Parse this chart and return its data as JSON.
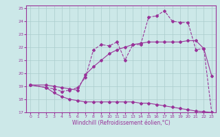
{
  "xlabel": "Windchill (Refroidissement éolien,°C)",
  "bg_color": "#cce8e8",
  "line_color": "#993399",
  "grid_color": "#aacccc",
  "xlim": [
    -0.5,
    23.5
  ],
  "ylim": [
    17,
    25.2
  ],
  "xticks": [
    0,
    1,
    2,
    3,
    4,
    5,
    6,
    7,
    8,
    9,
    10,
    11,
    12,
    13,
    14,
    15,
    16,
    17,
    18,
    19,
    20,
    21,
    22,
    23
  ],
  "yticks": [
    17,
    18,
    19,
    20,
    21,
    22,
    23,
    24,
    25
  ],
  "lines": [
    {
      "x": [
        0,
        2,
        3,
        4,
        5,
        6,
        7,
        8,
        9,
        10,
        11,
        12,
        13,
        14,
        15,
        16,
        17,
        18,
        19,
        20,
        21,
        22,
        23
      ],
      "y": [
        19.1,
        18.9,
        18.5,
        18.2,
        18.0,
        17.9,
        17.8,
        17.8,
        17.8,
        17.8,
        17.8,
        17.8,
        17.8,
        17.7,
        17.7,
        17.6,
        17.5,
        17.4,
        17.3,
        17.2,
        17.1,
        17.05,
        17.0
      ],
      "style": "-",
      "marker": "D",
      "markersize": 2.0,
      "linewidth": 0.8
    },
    {
      "x": [
        0,
        2,
        3,
        4,
        5,
        6,
        7,
        8,
        9,
        10,
        11,
        12,
        13,
        14,
        15,
        16,
        17,
        18,
        19,
        20,
        21,
        22,
        23
      ],
      "y": [
        19.1,
        19.1,
        19.0,
        18.9,
        18.8,
        18.7,
        19.9,
        20.5,
        21.0,
        21.5,
        21.8,
        22.0,
        22.2,
        22.3,
        22.4,
        22.4,
        22.4,
        22.4,
        22.4,
        22.5,
        22.5,
        21.9,
        19.8
      ],
      "style": "-",
      "marker": "D",
      "markersize": 2.0,
      "linewidth": 0.8
    },
    {
      "x": [
        0,
        2,
        3,
        4,
        5,
        6,
        7,
        8,
        9,
        10,
        11,
        12,
        13,
        13,
        14,
        15,
        16,
        17,
        18,
        19,
        20,
        21,
        22,
        23
      ],
      "y": [
        19.1,
        18.9,
        18.8,
        18.6,
        18.7,
        18.9,
        19.7,
        21.8,
        22.2,
        22.1,
        22.4,
        21.0,
        22.2,
        22.2,
        22.2,
        24.3,
        24.4,
        24.8,
        24.0,
        23.9,
        23.9,
        21.8,
        21.9,
        17.0
      ],
      "style": "--",
      "marker": "D",
      "markersize": 2.0,
      "linewidth": 0.8
    }
  ]
}
